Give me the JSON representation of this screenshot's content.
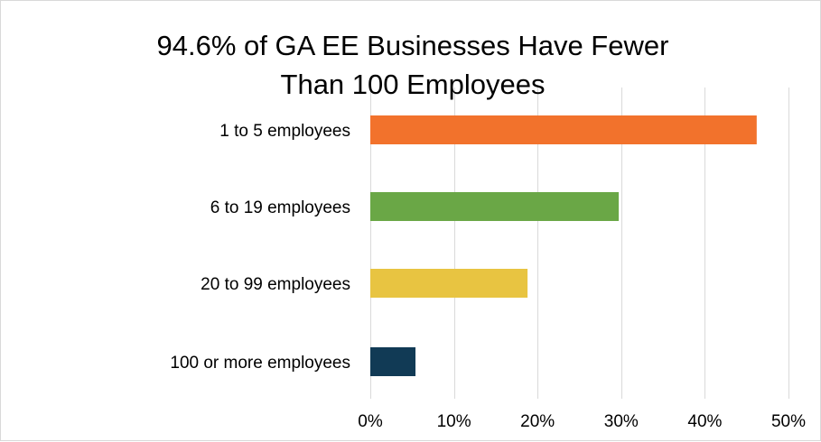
{
  "chart_data": {
    "type": "bar",
    "orientation": "horizontal",
    "title": "94.6% of GA EE Businesses Have Fewer Than 100 Employees",
    "title_lines": [
      "94.6% of GA EE Businesses Have Fewer",
      "Than 100 Employees"
    ],
    "categories": [
      "1 to 5 employees",
      "6 to 19 employees",
      "20 to 99 employees",
      "100 or more employees"
    ],
    "values": [
      46.2,
      29.7,
      18.8,
      5.4
    ],
    "value_unit": "%",
    "colors": [
      "#f2722c",
      "#6aa746",
      "#e8c441",
      "#113a55"
    ],
    "xlim": [
      0,
      50
    ],
    "ticks": [
      0,
      10,
      20,
      30,
      40,
      50
    ],
    "tick_labels": [
      "0%",
      "10%",
      "20%",
      "30%",
      "40%",
      "50%"
    ],
    "xlabel": "",
    "ylabel": "",
    "grid": "vertical",
    "gridline_color": "#d9d9d9",
    "legend": "none"
  }
}
